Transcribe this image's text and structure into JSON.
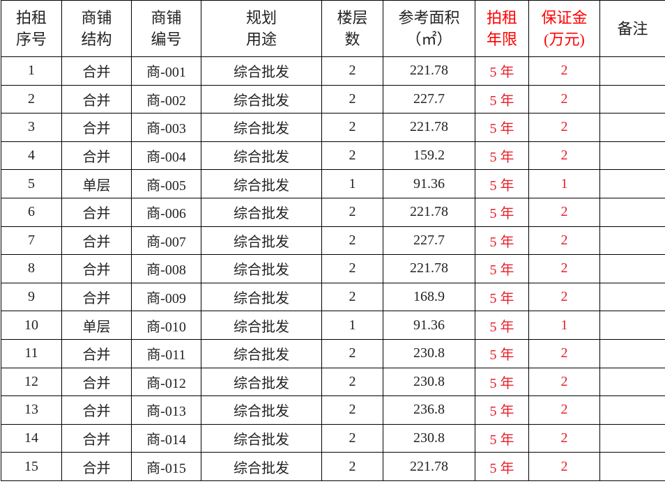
{
  "headers": [
    {
      "line1": "拍租",
      "line2": "序号",
      "red": false
    },
    {
      "line1": "商铺",
      "line2": "结构",
      "red": false
    },
    {
      "line1": "商铺",
      "line2": "编号",
      "red": false
    },
    {
      "line1": "规划",
      "line2": "用途",
      "red": false
    },
    {
      "line1": "楼层",
      "line2": "数",
      "red": false
    },
    {
      "line1": "参考面积",
      "line2": "（㎡）",
      "red": false
    },
    {
      "line1": "拍租",
      "line2": "年限",
      "red": true
    },
    {
      "line1": "保证金",
      "line2": "(万元)",
      "red": true
    },
    {
      "line1": "备注",
      "line2": "",
      "red": false
    }
  ],
  "colors": {
    "text": "#222222",
    "accent_red": "#e8202a",
    "border": "#000000"
  },
  "rows": [
    [
      "1",
      "合并",
      "商-001",
      "综合批发",
      "2",
      "221.78",
      "5 年",
      "2",
      ""
    ],
    [
      "2",
      "合并",
      "商-002",
      "综合批发",
      "2",
      "227.7",
      "5 年",
      "2",
      ""
    ],
    [
      "3",
      "合并",
      "商-003",
      "综合批发",
      "2",
      "221.78",
      "5 年",
      "2",
      ""
    ],
    [
      "4",
      "合并",
      "商-004",
      "综合批发",
      "2",
      "159.2",
      "5 年",
      "2",
      ""
    ],
    [
      "5",
      "单层",
      "商-005",
      "综合批发",
      "1",
      "91.36",
      "5 年",
      "1",
      ""
    ],
    [
      "6",
      "合并",
      "商-006",
      "综合批发",
      "2",
      "221.78",
      "5 年",
      "2",
      ""
    ],
    [
      "7",
      "合并",
      "商-007",
      "综合批发",
      "2",
      "227.7",
      "5 年",
      "2",
      ""
    ],
    [
      "8",
      "合并",
      "商-008",
      "综合批发",
      "2",
      "221.78",
      "5 年",
      "2",
      ""
    ],
    [
      "9",
      "合并",
      "商-009",
      "综合批发",
      "2",
      "168.9",
      "5 年",
      "2",
      ""
    ],
    [
      "10",
      "单层",
      "商-010",
      "综合批发",
      "1",
      "91.36",
      "5 年",
      "1",
      ""
    ],
    [
      "11",
      "合并",
      "商-011",
      "综合批发",
      "2",
      "230.8",
      "5 年",
      "2",
      ""
    ],
    [
      "12",
      "合并",
      "商-012",
      "综合批发",
      "2",
      "230.8",
      "5 年",
      "2",
      ""
    ],
    [
      "13",
      "合并",
      "商-013",
      "综合批发",
      "2",
      "236.8",
      "5 年",
      "2",
      ""
    ],
    [
      "14",
      "合并",
      "商-014",
      "综合批发",
      "2",
      "230.8",
      "5 年",
      "2",
      ""
    ],
    [
      "15",
      "合并",
      "商-015",
      "综合批发",
      "2",
      "221.78",
      "5 年",
      "2",
      ""
    ]
  ]
}
